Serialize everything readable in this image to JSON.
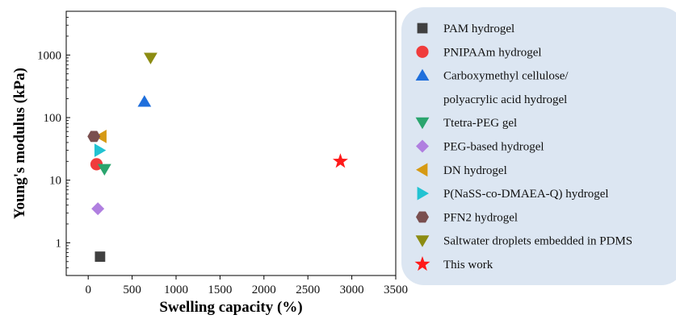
{
  "chart_data": {
    "type": "scatter",
    "title": "",
    "xlabel": "Swelling capacity (%)",
    "ylabel": "Young's modulus (kPa)",
    "xlim": [
      -250,
      3500
    ],
    "ylim": [
      0.3,
      5000
    ],
    "y_scale": "log",
    "x_ticks": [
      0,
      500,
      1000,
      1500,
      2000,
      2500,
      3000,
      3500
    ],
    "y_ticks": [
      1,
      10,
      100,
      1000
    ],
    "y_tick_labels": [
      "1",
      "10",
      "100",
      "1000"
    ],
    "grid": false,
    "legend_position": "right",
    "legend_background": "#dce6f2",
    "series": [
      {
        "name": "PAM hydrogel",
        "marker": "square",
        "color": "#404040",
        "x": 135,
        "y": 0.6
      },
      {
        "name": "PNIPAAm hydrogel",
        "marker": "circle",
        "color": "#f03c3c",
        "x": 95,
        "y": 18
      },
      {
        "name": "Carboxymethyl cellulose/",
        "name_line2": "polyacrylic acid hydrogel",
        "marker": "triangle-up",
        "color": "#1f6fdc",
        "x": 640,
        "y": 180
      },
      {
        "name": "Ttetra-PEG gel",
        "marker": "triangle-down",
        "color": "#2aa56e",
        "x": 185,
        "y": 15
      },
      {
        "name": "PEG-based hydrogel",
        "marker": "diamond",
        "color": "#b07fe0",
        "x": 110,
        "y": 3.5
      },
      {
        "name": "DN hydrogel",
        "marker": "triangle-left",
        "color": "#d69a14",
        "x": 150,
        "y": 50
      },
      {
        "name": "P(NaSS-co-DMAEA-Q) hydrogel",
        "marker": "triangle-right",
        "color": "#22c3d2",
        "x": 130,
        "y": 30
      },
      {
        "name": "PFN2 hydrogel",
        "marker": "hexagon",
        "color": "#7a4f4f",
        "x": 65,
        "y": 50
      },
      {
        "name": "Saltwater droplets embedded in PDMS",
        "marker": "triangle-down",
        "color": "#8c8c12",
        "x": 710,
        "y": 900
      },
      {
        "name": "This work",
        "marker": "star",
        "color": "#ff1a1a",
        "x": 2870,
        "y": 20
      }
    ]
  }
}
